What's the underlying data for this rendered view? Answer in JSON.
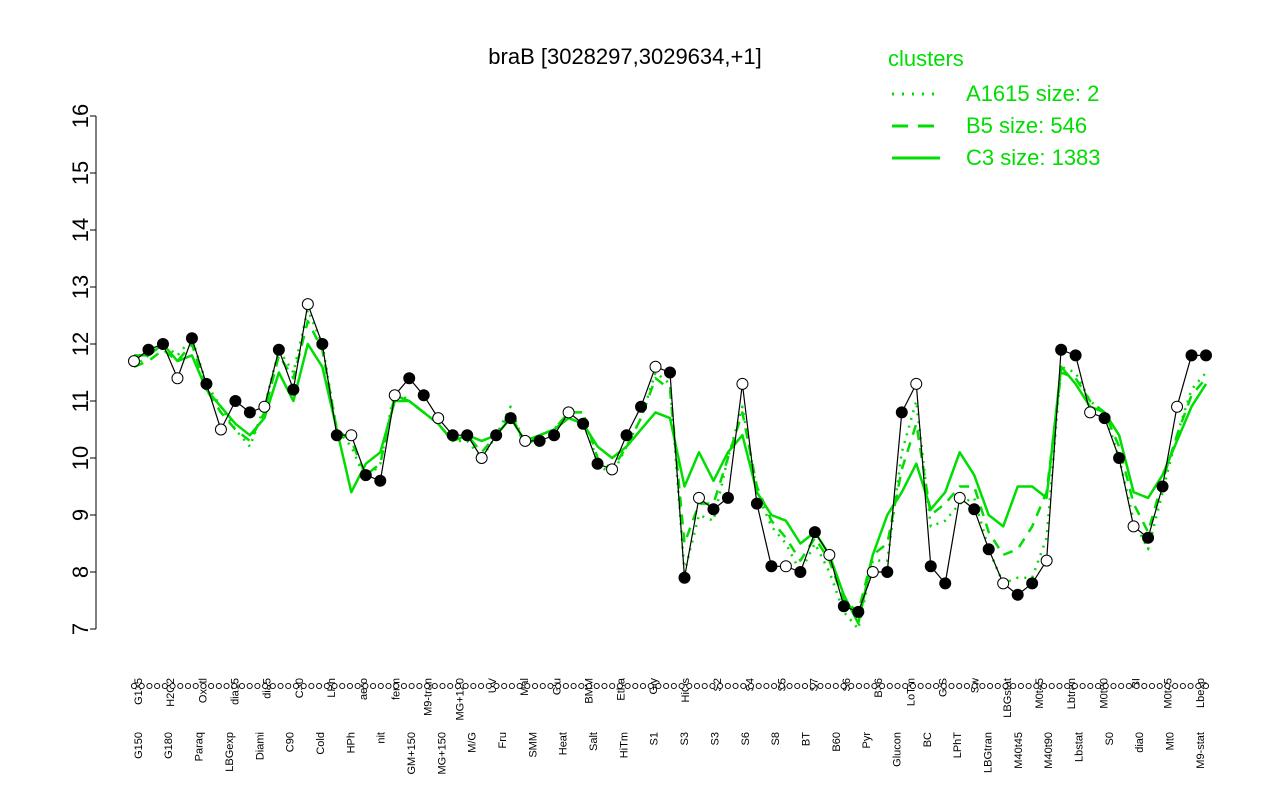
{
  "chart_data": {
    "type": "line",
    "title": "braB [3028297,3029634,+1]",
    "ylim": [
      7,
      16
    ],
    "yticks": [
      7,
      8,
      9,
      10,
      11,
      12,
      13,
      14,
      15,
      16
    ],
    "legend": {
      "title": "clusters",
      "placement": "top-right",
      "entries": [
        {
          "label": "A1615 size: 2",
          "style": "dotted"
        },
        {
          "label": "B5 size: 546",
          "style": "dashed"
        },
        {
          "label": "C3 size: 1383",
          "style": "solid"
        }
      ]
    },
    "line_color": "#00dd00",
    "category_labels_top": [
      "G135",
      "H2O2",
      "Oxctl",
      "dia15",
      "dia5",
      "C30",
      "LPh",
      "aero",
      "ferm",
      "M9-tran",
      "MG+120",
      "UV",
      "Mal",
      "Glu",
      "BMM",
      "Etha",
      "Gly",
      "HiOs",
      "S2",
      "S4",
      "S5",
      "S7",
      "S6",
      "B36",
      "LoTm",
      "G/S",
      "Sw",
      "LBGstat",
      "M0t45",
      "Lbtran",
      "M0t90",
      "BI",
      "M0t45",
      "Lbexp"
    ],
    "category_labels_bottom": [
      "G150",
      "G180",
      "Paraq",
      "LBGexp",
      "Diami",
      "C90",
      "Cold",
      "HPh",
      "nit",
      "GM+150",
      "MG+150",
      "M/G",
      "Fru",
      "SMM",
      "Heat",
      "Salt",
      "HiTm",
      "S1",
      "S3",
      "S3",
      "S6",
      "S8",
      "BT",
      "B60",
      "Pyr",
      "Glucon",
      "BC",
      "LPhT",
      "LBGtran",
      "M40t45",
      "M40t90",
      "Lbstat",
      "S0",
      "dia0",
      "Mt0",
      "M9-stat"
    ],
    "series": [
      {
        "name": "A1615 size: 2",
        "style": "dotted",
        "values": [
          11.6,
          11.8,
          12.0,
          11.8,
          12.1,
          11.3,
          10.9,
          10.5,
          10.2,
          10.9,
          11.9,
          11.5,
          12.6,
          12.0,
          10.5,
          10.2,
          9.6,
          9.9,
          11.2,
          11.0,
          10.8,
          10.6,
          10.3,
          10.3,
          10.0,
          10.4,
          10.9,
          10.2,
          10.4,
          10.5,
          10.8,
          10.8,
          9.9,
          9.7,
          10.2,
          10.7,
          11.5,
          11.3,
          8.0,
          9.0,
          8.9,
          10.0,
          10.9,
          9.4,
          8.8,
          8.5,
          8.0,
          8.5,
          8.0,
          7.3,
          7.0,
          8.2,
          8.2,
          10.1,
          11.0,
          8.8,
          8.9,
          9.2,
          9.3,
          8.4,
          7.8,
          7.9,
          7.9,
          8.6,
          11.6,
          11.5,
          11.0,
          10.8,
          10.0,
          8.9,
          8.4,
          9.4,
          10.4,
          11.2,
          11.5
        ]
      },
      {
        "name": "B5 size: 546",
        "style": "dashed",
        "values": [
          11.6,
          11.7,
          11.9,
          11.7,
          12.0,
          11.2,
          10.8,
          10.5,
          10.3,
          10.8,
          11.8,
          11.4,
          12.4,
          11.9,
          10.5,
          10.3,
          9.7,
          9.9,
          11.1,
          11.0,
          10.8,
          10.6,
          10.3,
          10.4,
          10.1,
          10.4,
          10.8,
          10.2,
          10.4,
          10.5,
          10.8,
          10.8,
          10.0,
          9.8,
          10.2,
          10.7,
          11.4,
          11.2,
          8.5,
          9.2,
          9.2,
          10.0,
          10.8,
          9.5,
          8.9,
          8.6,
          8.2,
          8.6,
          8.2,
          7.5,
          7.3,
          8.3,
          8.5,
          9.8,
          10.6,
          9.0,
          9.2,
          9.5,
          9.5,
          8.7,
          8.3,
          8.4,
          8.8,
          9.4,
          11.5,
          11.4,
          11.0,
          10.8,
          10.2,
          9.2,
          8.7,
          9.6,
          10.4,
          11.1,
          11.4
        ]
      },
      {
        "name": "C3 size: 1383",
        "style": "solid",
        "values": [
          11.8,
          11.8,
          12.0,
          11.7,
          11.8,
          11.2,
          10.9,
          10.6,
          10.4,
          10.7,
          11.5,
          11.0,
          12.0,
          11.6,
          10.5,
          9.4,
          9.9,
          10.1,
          11.0,
          11.0,
          10.8,
          10.6,
          10.3,
          10.4,
          10.3,
          10.4,
          10.7,
          10.3,
          10.4,
          10.5,
          10.7,
          10.6,
          10.2,
          10.0,
          10.2,
          10.5,
          10.8,
          10.7,
          9.5,
          10.1,
          9.6,
          10.1,
          10.4,
          9.4,
          9.0,
          8.9,
          8.5,
          8.7,
          8.3,
          7.6,
          7.1,
          8.3,
          9.0,
          9.4,
          9.9,
          9.1,
          9.4,
          10.1,
          9.7,
          9.0,
          8.8,
          9.5,
          9.5,
          9.3,
          11.6,
          11.3,
          10.9,
          10.8,
          10.4,
          9.4,
          9.3,
          9.7,
          10.3,
          10.9,
          11.3
        ]
      },
      {
        "name": "",
        "style": "points",
        "values": [
          11.7,
          11.9,
          12.0,
          11.4,
          12.1,
          11.3,
          10.5,
          11.0,
          10.8,
          10.9,
          11.9,
          11.2,
          12.7,
          12.0,
          10.4,
          10.4,
          9.7,
          9.6,
          11.1,
          11.4,
          11.1,
          10.7,
          10.4,
          10.4,
          10.0,
          10.4,
          10.7,
          10.3,
          10.3,
          10.4,
          10.8,
          10.6,
          9.9,
          9.8,
          10.4,
          10.9,
          11.6,
          11.5,
          7.9,
          9.3,
          9.1,
          9.3,
          11.3,
          9.2,
          8.1,
          8.1,
          8.0,
          8.7,
          8.3,
          7.4,
          7.3,
          8.0,
          8.0,
          10.8,
          11.3,
          8.1,
          7.8,
          9.3,
          9.1,
          8.4,
          7.8,
          7.6,
          7.8,
          8.2,
          11.9,
          11.8,
          10.8,
          10.7,
          10.0,
          8.8,
          8.6,
          9.5,
          10.9,
          11.8,
          11.8
        ]
      }
    ]
  }
}
